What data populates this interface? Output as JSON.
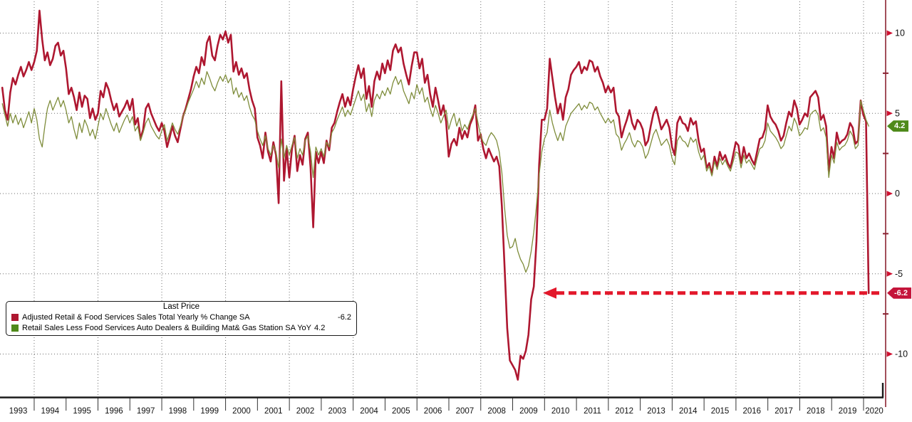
{
  "colors": {
    "red_line": "#ae1730",
    "green_line": "#7e8c3a",
    "axis_line": "#8a2332",
    "bottom_axis": "#1a1a1a",
    "grid": "#6e6e6e",
    "arrow": "#e3182b",
    "badge_green": "#4f8a1b",
    "badge_red": "#c4143a"
  },
  "chart_data": {
    "type": "line",
    "x_unit": "month",
    "x_start": "1993-01",
    "x_end": "2020-03",
    "y_ticks": [
      10,
      5,
      0,
      -5,
      -10
    ],
    "y_minor_ticks": [
      7.5,
      2.5,
      -2.5,
      -7.5
    ],
    "ylim": [
      -12.7,
      12.1
    ],
    "grid_style": "dotted",
    "grid_vertical_years": [
      1994,
      1996,
      1998,
      2000,
      2002,
      2004,
      2006,
      2008,
      2010,
      2012,
      2014,
      2016,
      2018,
      2020
    ],
    "legend_position": "bottom-left",
    "series": [
      {
        "name": "Adjusted Retail & Food Services Sales Total Yearly % Change SA",
        "color": "#ae1730",
        "width": 2.6,
        "last_price": -6.2,
        "values": [
          6.6,
          5.2,
          4.6,
          6.3,
          7.2,
          6.8,
          7.4,
          7.9,
          7.3,
          7.7,
          8.2,
          7.7,
          8.2,
          8.9,
          11.4,
          9.6,
          8.3,
          8.8,
          8.0,
          8.4,
          9.2,
          9.4,
          8.6,
          8.9,
          7.8,
          6.2,
          6.6,
          6.0,
          5.2,
          6.3,
          5.4,
          6.1,
          5.9,
          4.7,
          5.3,
          4.6,
          5.0,
          6.4,
          6.0,
          6.9,
          6.5,
          5.8,
          5.2,
          5.6,
          4.8,
          5.1,
          5.4,
          5.8,
          5.2,
          5.9,
          4.3,
          4.7,
          3.4,
          4.0,
          5.3,
          5.6,
          5.0,
          4.6,
          4.2,
          3.9,
          4.4,
          3.9,
          2.9,
          3.5,
          4.2,
          3.6,
          3.2,
          4.0,
          4.8,
          5.3,
          5.9,
          6.5,
          7.3,
          7.9,
          7.5,
          8.5,
          8.0,
          9.4,
          9.8,
          8.6,
          8.3,
          9.2,
          9.9,
          9.6,
          10.1,
          9.4,
          9.9,
          7.6,
          8.2,
          7.4,
          7.8,
          7.2,
          7.5,
          6.5,
          5.8,
          5.3,
          3.5,
          3.0,
          2.2,
          3.8,
          2.6,
          2.0,
          3.2,
          2.4,
          -0.6,
          7.0,
          0.8,
          2.8,
          1.0,
          2.8,
          3.6,
          1.4,
          2.4,
          1.8,
          3.4,
          3.8,
          1.6,
          -2.1,
          2.6,
          1.9,
          2.6,
          1.9,
          3.3,
          2.7,
          4.1,
          4.4,
          5.1,
          5.7,
          6.2,
          5.4,
          6.0,
          5.5,
          6.5,
          7.3,
          8.0,
          7.2,
          7.8,
          5.9,
          6.7,
          5.4,
          7.0,
          7.6,
          7.1,
          8.1,
          7.5,
          8.3,
          7.7,
          8.9,
          9.3,
          8.8,
          9.1,
          8.1,
          7.4,
          6.8,
          7.9,
          8.8,
          8.8,
          7.8,
          8.4,
          6.9,
          7.4,
          6.2,
          5.4,
          6.6,
          5.8,
          4.9,
          5.5,
          4.5,
          2.3,
          3.1,
          3.4,
          3.0,
          4.1,
          3.4,
          3.9,
          3.5,
          4.3,
          4.7,
          5.5,
          3.3,
          3.7,
          2.8,
          2.2,
          2.8,
          2.4,
          2.0,
          2.3,
          1.7,
          -0.8,
          -4.6,
          -8.4,
          -10.4,
          -10.7,
          -11.0,
          -11.6,
          -10.1,
          -10.3,
          -9.8,
          -8.8,
          -6.6,
          -5.8,
          -3.0,
          1.8,
          4.6,
          4.6,
          5.3,
          8.4,
          7.2,
          6.0,
          5.0,
          5.6,
          4.6,
          6.0,
          6.5,
          7.4,
          7.7,
          7.9,
          8.2,
          7.5,
          7.9,
          7.7,
          8.3,
          8.2,
          7.6,
          7.9,
          7.3,
          6.9,
          6.3,
          6.7,
          6.3,
          6.6,
          5.1,
          4.8,
          3.5,
          4.1,
          4.6,
          5.2,
          4.4,
          4.0,
          4.6,
          4.4,
          4.0,
          3.0,
          3.3,
          4.2,
          5.0,
          5.4,
          4.7,
          4.0,
          4.3,
          4.6,
          4.1,
          2.9,
          2.4,
          4.4,
          4.8,
          4.4,
          4.3,
          3.9,
          4.7,
          4.3,
          4.5,
          3.3,
          2.6,
          2.8,
          1.6,
          1.9,
          1.2,
          2.3,
          1.7,
          2.6,
          2.1,
          2.4,
          1.9,
          1.6,
          2.4,
          3.2,
          3.0,
          1.9,
          2.9,
          2.2,
          2.5,
          2.1,
          1.8,
          2.6,
          3.4,
          3.5,
          4.0,
          5.5,
          4.8,
          4.5,
          4.3,
          3.9,
          3.3,
          3.6,
          4.4,
          5.1,
          4.8,
          5.8,
          5.3,
          4.3,
          4.6,
          5.0,
          4.8,
          6.0,
          6.2,
          6.4,
          6.0,
          4.6,
          4.9,
          4.2,
          1.4,
          2.9,
          2.2,
          3.8,
          3.1,
          3.3,
          3.4,
          3.7,
          4.4,
          4.1,
          3.1,
          3.3,
          5.8,
          4.9,
          4.5,
          -6.2
        ]
      },
      {
        "name": "Retail Sales Less Food Services Auto Dealers & Building Mat& Gas Station SA YoY",
        "color": "#7e8c3a",
        "width": 1.3,
        "last_price": 4.2,
        "values": [
          5.6,
          4.9,
          4.2,
          5.0,
          4.4,
          4.9,
          4.3,
          4.7,
          4.1,
          4.6,
          5.1,
          4.4,
          5.3,
          4.6,
          3.4,
          2.9,
          4.2,
          5.3,
          5.8,
          5.2,
          5.6,
          6.0,
          5.4,
          5.8,
          5.2,
          4.4,
          4.8,
          4.0,
          3.4,
          4.4,
          3.8,
          4.6,
          4.2,
          3.6,
          4.0,
          3.4,
          4.2,
          5.0,
          4.6,
          5.3,
          4.8,
          4.3,
          3.9,
          4.4,
          3.8,
          4.2,
          4.6,
          4.9,
          4.4,
          4.8,
          3.9,
          4.2,
          3.3,
          3.8,
          4.4,
          4.7,
          4.2,
          3.9,
          3.6,
          3.4,
          3.9,
          4.3,
          3.3,
          3.8,
          4.4,
          4.0,
          3.7,
          4.2,
          4.8,
          5.2,
          5.7,
          6.1,
          6.5,
          7.0,
          6.6,
          7.2,
          6.8,
          7.6,
          7.2,
          6.7,
          6.4,
          6.9,
          7.3,
          7.0,
          7.4,
          6.9,
          7.2,
          6.2,
          6.6,
          6.0,
          6.3,
          5.8,
          6.1,
          5.4,
          4.9,
          4.6,
          3.9,
          3.4,
          3.0,
          3.6,
          2.8,
          2.4,
          3.0,
          2.6,
          1.6,
          3.4,
          2.2,
          3.0,
          2.4,
          3.0,
          3.5,
          2.2,
          2.8,
          2.4,
          3.3,
          3.6,
          2.6,
          1.0,
          2.9,
          2.4,
          2.8,
          2.3,
          3.2,
          2.9,
          3.8,
          4.1,
          4.6,
          5.0,
          5.4,
          4.8,
          5.2,
          4.9,
          5.4,
          5.9,
          6.4,
          5.8,
          6.2,
          5.1,
          5.6,
          4.8,
          5.8,
          6.2,
          5.9,
          6.4,
          6.1,
          6.6,
          6.2,
          6.9,
          7.3,
          6.8,
          7.1,
          6.4,
          6.0,
          5.6,
          6.3,
          5.9,
          6.8,
          6.2,
          6.6,
          5.7,
          6.0,
          5.3,
          4.8,
          5.5,
          5.0,
          4.4,
          4.8,
          5.2,
          4.0,
          4.6,
          5.0,
          4.2,
          4.7,
          3.9,
          4.3,
          4.0,
          4.5,
          4.9,
          5.3,
          4.4,
          3.6,
          3.2,
          3.0,
          3.5,
          3.8,
          3.6,
          3.3,
          2.6,
          1.3,
          -0.9,
          -2.6,
          -3.4,
          -3.3,
          -2.8,
          -3.6,
          -4.1,
          -4.4,
          -4.9,
          -4.5,
          -3.6,
          -2.4,
          -0.8,
          1.2,
          2.6,
          3.4,
          3.8,
          5.2,
          4.4,
          3.8,
          3.3,
          3.8,
          3.3,
          4.2,
          4.6,
          5.0,
          5.2,
          5.4,
          5.6,
          5.2,
          5.5,
          5.3,
          5.7,
          5.6,
          5.2,
          5.4,
          5.0,
          4.7,
          4.4,
          4.7,
          4.4,
          4.6,
          3.7,
          3.5,
          2.7,
          3.1,
          3.4,
          3.8,
          3.2,
          2.9,
          3.3,
          3.2,
          2.9,
          2.2,
          2.5,
          3.1,
          3.7,
          4.0,
          3.5,
          3.0,
          3.2,
          3.4,
          3.0,
          2.2,
          1.8,
          3.3,
          3.6,
          3.3,
          3.2,
          2.9,
          3.5,
          3.2,
          3.4,
          2.6,
          2.1,
          2.4,
          1.4,
          1.7,
          1.1,
          2.0,
          1.5,
          2.2,
          1.8,
          2.1,
          1.7,
          1.4,
          2.0,
          2.6,
          2.5,
          1.6,
          2.4,
          1.9,
          2.1,
          1.8,
          1.5,
          2.2,
          2.8,
          2.9,
          3.3,
          4.4,
          3.9,
          3.7,
          3.5,
          3.2,
          2.8,
          3.0,
          3.6,
          4.2,
          3.9,
          4.7,
          4.3,
          3.6,
          3.8,
          4.1,
          4.0,
          4.9,
          5.1,
          5.2,
          4.9,
          3.9,
          4.1,
          3.5,
          1.0,
          2.4,
          1.9,
          3.2,
          2.7,
          2.9,
          3.0,
          3.3,
          3.9,
          3.6,
          2.8,
          3.0,
          5.8,
          5.2,
          4.6,
          4.2
        ]
      }
    ],
    "annotation_arrow": {
      "value": -6.2,
      "style": "dashed",
      "direction": "left",
      "color": "#e3182b"
    }
  },
  "x_axis": {
    "years": [
      "1993",
      "1994",
      "1995",
      "1996",
      "1997",
      "1998",
      "1999",
      "2000",
      "2001",
      "2002",
      "2003",
      "2004",
      "2005",
      "2006",
      "2007",
      "2008",
      "2009",
      "2010",
      "2011",
      "2012",
      "2013",
      "2014",
      "2015",
      "2016",
      "2017",
      "2018",
      "2019",
      "2020"
    ]
  },
  "right_axis": {
    "tick_labels": [
      "10",
      "5",
      "0",
      "-5",
      "-10"
    ],
    "badges": [
      {
        "text": "4.2",
        "value": 4.2,
        "color": "#4f8a1b"
      },
      {
        "text": "-6.2",
        "value": -6.2,
        "color": "#c4143a"
      }
    ]
  },
  "legend": {
    "title": "Last Price",
    "items": [
      {
        "label": "Adjusted Retail & Food Services Sales Total Yearly % Change SA",
        "value": "-6.2",
        "color": "#ae1730"
      },
      {
        "label": "Retail Sales Less Food Services Auto Dealers & Building Mat& Gas Station SA YoY",
        "value": "4.2",
        "color": "#4f8a1b"
      }
    ]
  }
}
